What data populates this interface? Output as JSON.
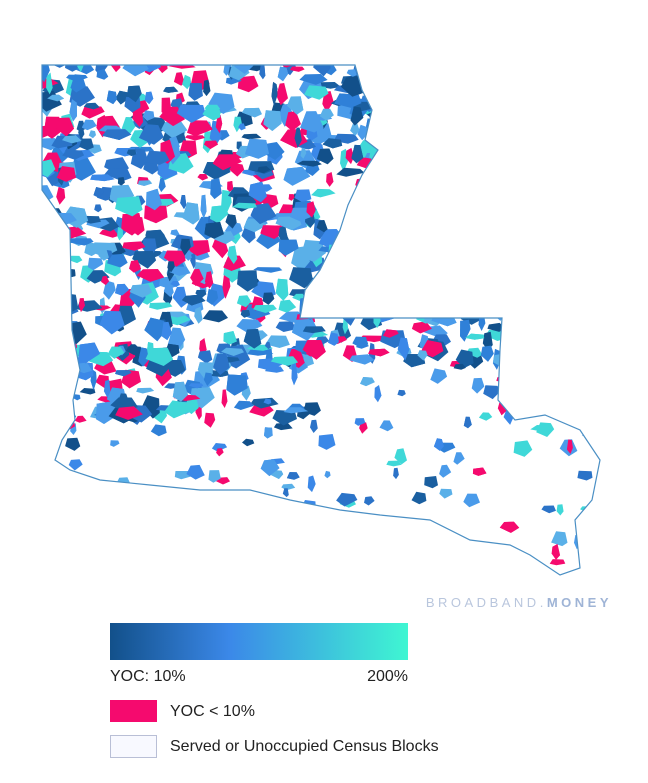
{
  "watermark": {
    "brand": "BROADBAND",
    "dot": ".",
    "suffix": "MONEY"
  },
  "legend": {
    "scale_min_label": "YOC: 10%",
    "scale_max_label": "200%",
    "low_label": "YOC < 10%",
    "served_label": "Served or Unoccupied Census Blocks"
  }
}
